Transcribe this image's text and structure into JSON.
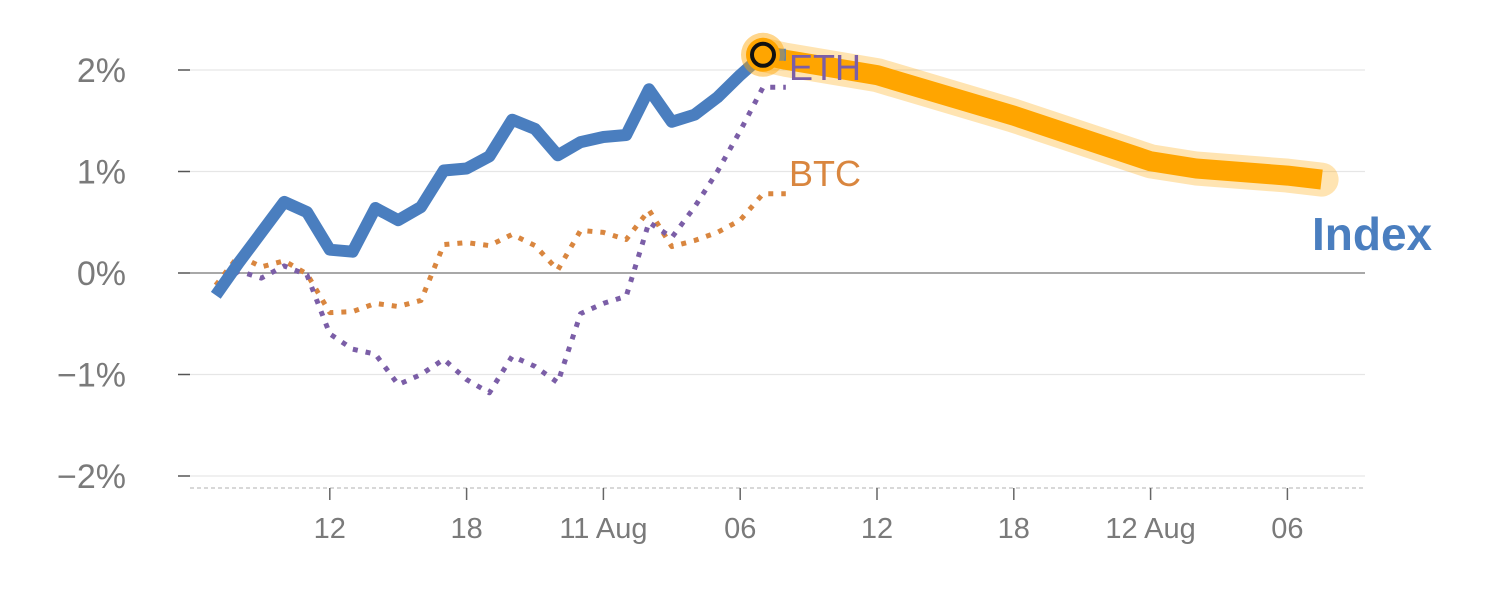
{
  "chart_data": {
    "type": "line",
    "y_ticks": [
      "2%",
      "1%",
      "0%",
      "−1%",
      "−2%"
    ],
    "y_tick_values": [
      2,
      1,
      0,
      -1,
      -2
    ],
    "ylim": [
      -2.1,
      2.15
    ],
    "x_tick_labels": [
      "12",
      "18",
      "11 Aug",
      "06",
      "12",
      "18",
      "12 Aug",
      "06"
    ],
    "x_tick_positions": [
      6,
      12,
      18,
      24,
      30,
      36,
      42,
      48
    ],
    "xlim": [
      0,
      51
    ],
    "grid": true,
    "colors": {
      "index": "#4a7ebf",
      "eth": "#7b5ea7",
      "btc": "#d9863f",
      "forecast": "#ffa500",
      "grid": "#e6e6e6",
      "zero_line": "#8c8c8c",
      "tick_text": "#7a7a7a"
    },
    "series": [
      {
        "key": "index",
        "name": "Index",
        "style": "solid",
        "x": [
          1,
          2,
          3,
          4,
          5,
          6,
          7,
          8,
          9,
          10,
          11,
          12,
          13,
          14,
          15,
          16,
          17,
          18,
          19,
          20,
          21,
          22,
          23,
          24,
          25,
          26
        ],
        "values": [
          -0.22,
          0.1,
          0.4,
          0.7,
          0.6,
          0.23,
          0.21,
          0.64,
          0.52,
          0.65,
          1.01,
          1.03,
          1.15,
          1.51,
          1.42,
          1.16,
          1.29,
          1.34,
          1.36,
          1.81,
          1.49,
          1.56,
          1.73,
          1.95,
          2.15,
          2.15
        ]
      },
      {
        "key": "eth",
        "name": "ETH",
        "style": "dotted",
        "x": [
          1,
          2,
          3,
          4,
          5,
          6,
          7,
          8,
          9,
          10,
          11,
          12,
          13,
          14,
          15,
          16,
          17,
          18,
          19,
          20,
          21,
          22,
          23,
          24,
          25,
          26
        ],
        "values": [
          -0.17,
          0.02,
          -0.05,
          0.07,
          -0.02,
          -0.6,
          -0.75,
          -0.8,
          -1.1,
          -1.0,
          -0.85,
          -1.05,
          -1.18,
          -0.82,
          -0.92,
          -1.08,
          -0.4,
          -0.3,
          -0.23,
          0.5,
          0.35,
          0.65,
          1.0,
          1.4,
          1.83,
          1.83
        ]
      },
      {
        "key": "btc",
        "name": "BTC",
        "style": "dotted",
        "x": [
          1,
          2,
          3,
          4,
          5,
          6,
          7,
          8,
          9,
          10,
          11,
          12,
          13,
          14,
          15,
          16,
          17,
          18,
          19,
          20,
          21,
          22,
          23,
          24,
          25,
          26
        ],
        "values": [
          -0.12,
          0.17,
          0.06,
          0.12,
          -0.01,
          -0.39,
          -0.38,
          -0.3,
          -0.33,
          -0.27,
          0.28,
          0.3,
          0.27,
          0.38,
          0.27,
          0.03,
          0.42,
          0.4,
          0.33,
          0.62,
          0.26,
          0.32,
          0.4,
          0.52,
          0.78,
          0.78
        ]
      },
      {
        "key": "forecast",
        "name": "",
        "style": "band",
        "x": [
          25,
          26,
          30,
          36,
          42,
          44,
          48,
          49.5
        ],
        "values": [
          2.15,
          2.1,
          1.95,
          1.55,
          1.1,
          1.03,
          0.96,
          0.92
        ]
      }
    ],
    "marker": {
      "x": 25,
      "value": 2.15
    },
    "labels": {
      "eth": "ETH",
      "btc": "BTC",
      "index": "Index"
    }
  }
}
